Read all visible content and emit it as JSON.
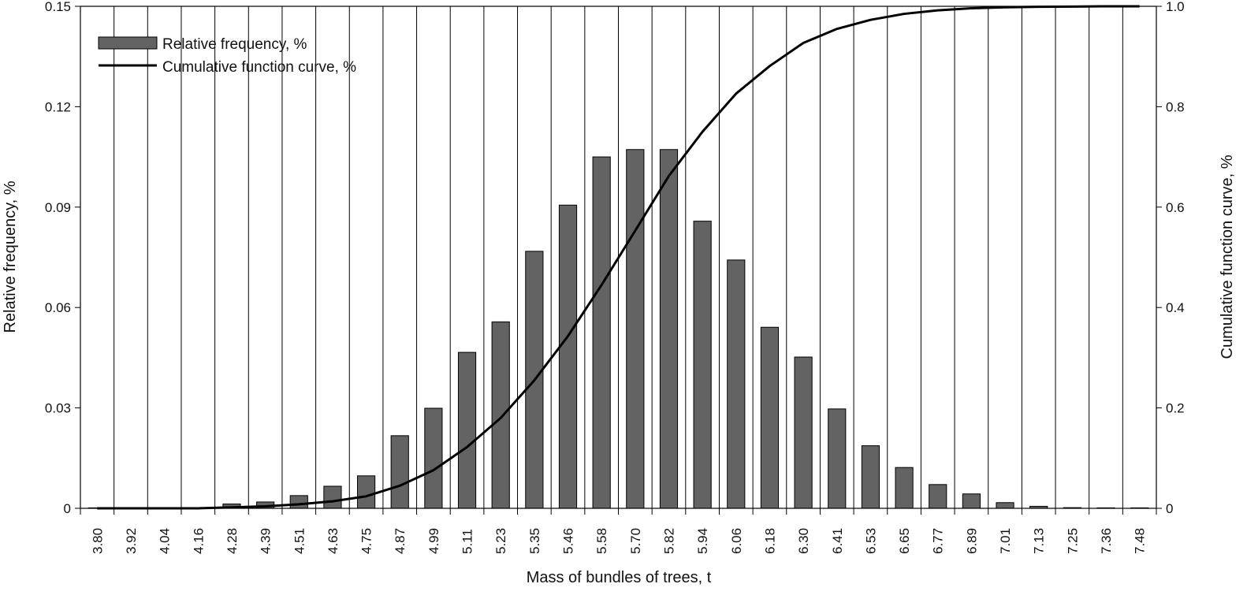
{
  "chart_data": {
    "type": "bar",
    "title": "",
    "xlabel": "Mass of bundles of trees, t",
    "ylabel": "Relative frequency, %",
    "y2label": "Cumulative function curve, %",
    "ylim": [
      0,
      0.15
    ],
    "y2lim": [
      0,
      1.0
    ],
    "yticks": [
      "0",
      "0.03",
      "0.06",
      "0.09",
      "0.12",
      "0.15"
    ],
    "y2ticks": [
      "0",
      "0.2",
      "0.4",
      "0.6",
      "0.8",
      "1.0"
    ],
    "grid": "vertical",
    "legend_position": "top-left",
    "colors": {
      "bars": "#636363",
      "line": "#000000",
      "grid": "#000000"
    },
    "categories": [
      "3.80",
      "3.92",
      "4.04",
      "4.16",
      "4.28",
      "4.39",
      "4.51",
      "4.63",
      "4.75",
      "4.87",
      "4.99",
      "5.11",
      "5.23",
      "5.35",
      "5.46",
      "5.58",
      "5.70",
      "5.82",
      "5.94",
      "6.06",
      "6.18",
      "6.30",
      "6.41",
      "6.53",
      "6.65",
      "6.77",
      "6.89",
      "7.01",
      "7.13",
      "7.25",
      "7.36",
      "7.48"
    ],
    "series": [
      {
        "name": "Relative frequency, %",
        "kind": "bar",
        "axis": "left",
        "values": [
          0,
          0,
          0,
          0,
          0.0013,
          0.0019,
          0.0038,
          0.0066,
          0.0097,
          0.0217,
          0.0299,
          0.0466,
          0.0557,
          0.0768,
          0.0906,
          0.105,
          0.1072,
          0.1072,
          0.0858,
          0.0742,
          0.0541,
          0.0452,
          0.0297,
          0.0187,
          0.0122,
          0.0071,
          0.0043,
          0.0017,
          0.0006,
          0.0002,
          0.0001,
          0.0001
        ]
      },
      {
        "name": "Cumulative function curve, %",
        "kind": "line",
        "axis": "right",
        "values": [
          0,
          0,
          0,
          0,
          0.002,
          0.004,
          0.008,
          0.014,
          0.024,
          0.045,
          0.076,
          0.122,
          0.18,
          0.255,
          0.343,
          0.445,
          0.553,
          0.662,
          0.75,
          0.826,
          0.881,
          0.927,
          0.955,
          0.973,
          0.985,
          0.992,
          0.996,
          0.998,
          0.999,
          0.9995,
          1.0,
          1.0
        ]
      }
    ]
  }
}
